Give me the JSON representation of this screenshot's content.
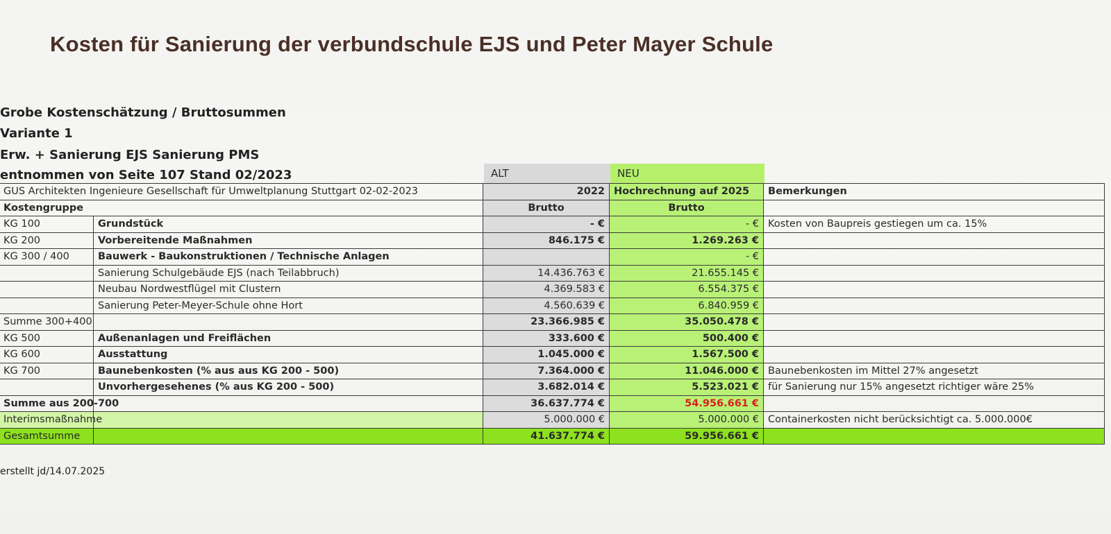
{
  "title": "Kosten für Sanierung der verbundschule EJS und Peter Mayer Schule",
  "info_lines": [
    "Grobe Kostenschätzung / Bruttosummen",
    "Variante 1",
    "Erw. + Sanierung EJS Sanierung PMS",
    "entnommen von Seite 107 Stand 02/2023"
  ],
  "columns": {
    "alt": "ALT",
    "neu": "NEU"
  },
  "table": {
    "source": "GUS Architekten Ingenieure Gesellschaft für Umweltplanung Stuttgart 02-02-2023",
    "year_alt": "2022",
    "year_neu": "Hochrechnung auf 2025",
    "remarks_header": "Bemerkungen",
    "group_header": "Kostengruppe",
    "brutto_alt": "Brutto",
    "brutto_neu": "Brutto",
    "rows": [
      {
        "kg": "KG 100",
        "desc": "Grundstück",
        "alt": "-   €",
        "neu": "-   €",
        "remark": "Kosten von Baupreis gestiegen um ca. 15%"
      },
      {
        "kg": "KG 200",
        "desc": "Vorbereitende Maßnahmen",
        "alt": "846.175 €",
        "neu": "1.269.263 €",
        "remark": ""
      },
      {
        "kg": "KG 300 / 400",
        "desc": "Bauwerk - Baukonstruktionen / Technische Anlagen",
        "alt": "",
        "neu": "-   €",
        "remark": ""
      },
      {
        "kg": "",
        "desc": "Sanierung Schulgebäude EJS (nach Teilabbruch)",
        "alt": "14.436.763 €",
        "neu": "21.655.145 €",
        "remark": ""
      },
      {
        "kg": "",
        "desc": "Neubau Nordwestflügel mit Clustern",
        "alt": "4.369.583 €",
        "neu": "6.554.375 €",
        "remark": ""
      },
      {
        "kg": "",
        "desc": "Sanierung Peter-Meyer-Schule ohne Hort",
        "alt": "4.560.639 €",
        "neu": "6.840.959 €",
        "remark": ""
      },
      {
        "kg": "Summe 300+400",
        "desc": "",
        "alt": "23.366.985 €",
        "neu": "35.050.478 €",
        "remark": ""
      },
      {
        "kg": "KG 500",
        "desc": "Außenanlagen und Freiflächen",
        "alt": "333.600 €",
        "neu": "500.400 €",
        "remark": ""
      },
      {
        "kg": "KG 600",
        "desc": "Ausstattung",
        "alt": "1.045.000 €",
        "neu": "1.567.500 €",
        "remark": ""
      },
      {
        "kg": "KG 700",
        "desc": "Baunebenkosten (% aus aus KG 200 - 500)",
        "alt": "7.364.000 €",
        "neu": "11.046.000 €",
        "remark": "Baunebenkosten im Mittel 27% angesetzt"
      },
      {
        "kg": "",
        "desc": "Unvorhergesehenes (% aus KG 200 - 500)",
        "alt": "3.682.014 €",
        "neu": "5.523.021 €",
        "remark": "für Sanierung nur 15% angesetzt richtiger wäre 25%"
      },
      {
        "kg": "Summe aus 200-700",
        "desc": "",
        "alt": "36.637.774 €",
        "neu": "54.956.661 €",
        "remark": ""
      },
      {
        "kg": "Interimsmaßnahme",
        "desc": "",
        "alt": "5.000.000 €",
        "neu": "5.000.000 €",
        "remark": "Containerkosten nicht berücksichtigt ca. 5.000.000€"
      },
      {
        "kg": "Gesamtsumme",
        "desc": "",
        "alt": "41.637.774 €",
        "neu": "59.956.661 €",
        "remark": ""
      }
    ]
  },
  "footer": "erstellt jd/14.07.2025",
  "colors": {
    "title": "#4a2f27",
    "alt_column": "#dcdcdc",
    "neu_column": "#b9f177",
    "total_row": "#8ee11e",
    "highlight_red": "#d9201b"
  }
}
